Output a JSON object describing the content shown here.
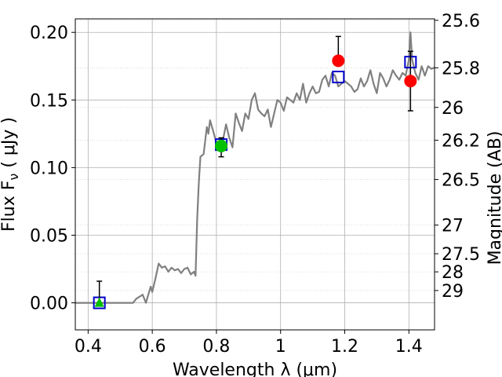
{
  "chart_data": {
    "type": "line",
    "title": "",
    "xlabel": "Wavelength  λ (μm)",
    "ylabel": "Flux  F_ν  ( μJy )",
    "y2label": "Magnitude (AB)",
    "xlim": [
      0.36,
      1.48
    ],
    "ylim": [
      -0.02,
      0.21
    ],
    "grid": true,
    "x_ticks": [
      {
        "value": 0.4,
        "label": "0.4"
      },
      {
        "value": 0.6,
        "label": "0.6"
      },
      {
        "value": 0.8,
        "label": "0.8"
      },
      {
        "value": 1.0,
        "label": "1"
      },
      {
        "value": 1.2,
        "label": "1.2"
      },
      {
        "value": 1.4,
        "label": "1.4"
      }
    ],
    "y_ticks": [
      {
        "value": 0.0,
        "label": "0.00"
      },
      {
        "value": 0.05,
        "label": "0.05"
      },
      {
        "value": 0.1,
        "label": "0.10"
      },
      {
        "value": 0.15,
        "label": "0.15"
      },
      {
        "value": 0.2,
        "label": "0.20"
      }
    ],
    "y2_ticks": [
      {
        "flux": 0.2089,
        "label": "25.6"
      },
      {
        "flux": 0.1738,
        "label": "25.8"
      },
      {
        "flux": 0.1445,
        "label": "26"
      },
      {
        "flux": 0.1202,
        "label": "26.2"
      },
      {
        "flux": 0.0912,
        "label": "26.5"
      },
      {
        "flux": 0.0575,
        "label": "27"
      },
      {
        "flux": 0.0363,
        "label": "27.5"
      },
      {
        "flux": 0.0229,
        "label": "28"
      },
      {
        "flux": 0.0091,
        "label": "29"
      }
    ],
    "model_spectrum": {
      "color": "#808080",
      "x": [
        0.36,
        0.54,
        0.55,
        0.57,
        0.58,
        0.59,
        0.595,
        0.6,
        0.61,
        0.62,
        0.63,
        0.64,
        0.65,
        0.66,
        0.67,
        0.68,
        0.69,
        0.7,
        0.71,
        0.72,
        0.73,
        0.735,
        0.74,
        0.745,
        0.75,
        0.76,
        0.77,
        0.775,
        0.78,
        0.79,
        0.8,
        0.81,
        0.82,
        0.83,
        0.84,
        0.85,
        0.86,
        0.87,
        0.88,
        0.89,
        0.9,
        0.91,
        0.92,
        0.93,
        0.94,
        0.95,
        0.96,
        0.97,
        0.98,
        0.99,
        1.0,
        1.01,
        1.02,
        1.03,
        1.04,
        1.05,
        1.06,
        1.07,
        1.08,
        1.09,
        1.1,
        1.11,
        1.12,
        1.13,
        1.14,
        1.15,
        1.16,
        1.17,
        1.18,
        1.19,
        1.2,
        1.21,
        1.22,
        1.23,
        1.24,
        1.25,
        1.26,
        1.27,
        1.28,
        1.29,
        1.3,
        1.31,
        1.32,
        1.33,
        1.34,
        1.35,
        1.36,
        1.37,
        1.38,
        1.39,
        1.4,
        1.405,
        1.41,
        1.42,
        1.43,
        1.44,
        1.45,
        1.46,
        1.47,
        1.48
      ],
      "y": [
        0.0,
        0.0,
        0.003,
        0.006,
        0.0,
        0.008,
        0.012,
        0.008,
        0.018,
        0.029,
        0.026,
        0.027,
        0.023,
        0.026,
        0.024,
        0.025,
        0.022,
        0.025,
        0.026,
        0.021,
        0.023,
        0.02,
        0.062,
        0.088,
        0.108,
        0.11,
        0.13,
        0.125,
        0.135,
        0.127,
        0.118,
        0.12,
        0.12,
        0.132,
        0.122,
        0.115,
        0.14,
        0.133,
        0.127,
        0.14,
        0.136,
        0.15,
        0.155,
        0.143,
        0.14,
        0.138,
        0.143,
        0.13,
        0.14,
        0.15,
        0.148,
        0.142,
        0.152,
        0.15,
        0.148,
        0.155,
        0.15,
        0.162,
        0.148,
        0.155,
        0.16,
        0.155,
        0.156,
        0.165,
        0.168,
        0.16,
        0.17,
        0.168,
        0.16,
        0.162,
        0.164,
        0.162,
        0.16,
        0.156,
        0.158,
        0.166,
        0.16,
        0.164,
        0.172,
        0.162,
        0.155,
        0.17,
        0.166,
        0.16,
        0.165,
        0.172,
        0.168,
        0.165,
        0.17,
        0.168,
        0.18,
        0.2,
        0.18,
        0.17,
        0.165,
        0.175,
        0.168,
        0.175,
        0.173,
        0.174
      ]
    },
    "observed": [
      {
        "x": 1.18,
        "y": 0.179,
        "err": [
          0.0,
          0.018
        ],
        "marker": "circle",
        "color": "#ff0000"
      },
      {
        "x": 1.405,
        "y": 0.164,
        "err": [
          0.022,
          0.022
        ],
        "marker": "circle",
        "color": "#ff0000"
      },
      {
        "x": 0.815,
        "y": 0.116,
        "err": [
          0.008,
          0.006
        ],
        "marker": "circle",
        "color": "#00c000"
      },
      {
        "x": 0.435,
        "y": 0.0,
        "err": [
          0.0,
          0.016
        ],
        "marker": "triangle",
        "color": "#00c000"
      }
    ],
    "model_photometry": [
      {
        "x": 0.435,
        "y": 0.0
      },
      {
        "x": 0.815,
        "y": 0.117
      },
      {
        "x": 1.18,
        "y": 0.167
      },
      {
        "x": 1.405,
        "y": 0.178
      }
    ],
    "model_photometry_color": "#0000cc"
  }
}
